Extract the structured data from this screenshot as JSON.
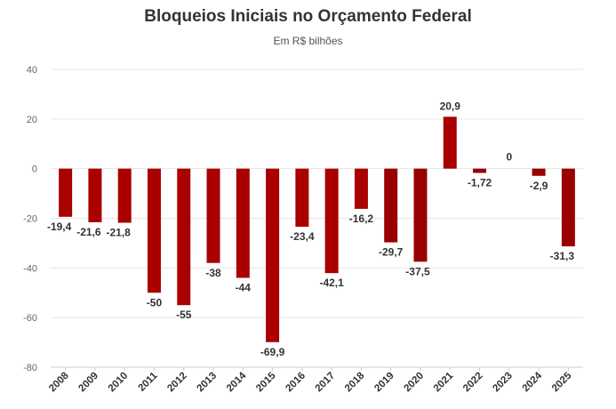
{
  "chart_data": {
    "type": "bar",
    "title": "Bloqueios Iniciais no Orçamento Federal",
    "subtitle": "Em R$ bilhões",
    "xlabel": "",
    "ylabel": "",
    "categories": [
      "2008",
      "2009",
      "2010",
      "2011",
      "2012",
      "2013",
      "2014",
      "2015",
      "2016",
      "2017",
      "2018",
      "2019",
      "2020",
      "2021",
      "2022",
      "2023",
      "2024",
      "2025"
    ],
    "values": [
      -19.4,
      -21.6,
      -21.8,
      -50,
      -55,
      -38,
      -44,
      -69.9,
      -23.4,
      -42.1,
      -16.2,
      -29.7,
      -37.5,
      20.9,
      -1.72,
      0,
      -2.9,
      -31.3
    ],
    "data_labels": [
      "-19,4",
      "-21,6",
      "-21,8",
      "-50",
      "-55",
      "-38",
      "-44",
      "-69,9",
      "-23,4",
      "-42,1",
      "-16,2",
      "-29,7",
      "-37,5",
      "20,9",
      "-1,72",
      "0",
      "-2,9",
      "-31,3"
    ],
    "ylim": [
      -80,
      40
    ],
    "yticks": [
      40,
      20,
      0,
      -20,
      -40,
      -60,
      -80
    ],
    "ytick_labels": [
      "40",
      "20",
      "0",
      "-20",
      "-40",
      "-60",
      "-80"
    ],
    "grid": true,
    "colors": {
      "bar": "#aa0000",
      "bar_recent": "#990000",
      "grid": "#e6e6e6",
      "axis": "#cccccc"
    }
  }
}
